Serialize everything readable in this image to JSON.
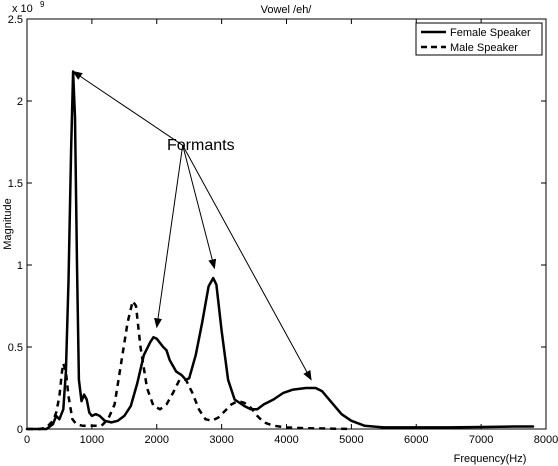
{
  "chart_data": {
    "type": "line",
    "title": "Vowel /eh/",
    "xlabel": "Frequency(Hz)",
    "ylabel": "Magnitude",
    "y_multiplier_label": "x 10",
    "y_multiplier_exponent": "9",
    "xlim": [
      0,
      8000
    ],
    "ylim": [
      0,
      2.5
    ],
    "xticks": [
      0,
      1000,
      2000,
      3000,
      4000,
      5000,
      6000,
      7000,
      8000
    ],
    "yticks": [
      0,
      0.5,
      1,
      1.5,
      2,
      2.5
    ],
    "xtick_labels": [
      "0",
      "1000",
      "2000",
      "3000",
      "4000",
      "5000",
      "6000",
      "7000",
      "8000"
    ],
    "ytick_labels": [
      "0",
      "0.5",
      "1",
      "1.5",
      "2",
      "2.5"
    ],
    "grid": false,
    "legend_position": "top-right",
    "series": [
      {
        "name": "Female Speaker",
        "style": "solid",
        "points": [
          [
            0,
            0
          ],
          [
            300,
            0
          ],
          [
            400,
            0.03
          ],
          [
            450,
            0.08
          ],
          [
            500,
            0.06
          ],
          [
            560,
            0.12
          ],
          [
            600,
            0.35
          ],
          [
            640,
            0.9
          ],
          [
            680,
            1.7
          ],
          [
            710,
            2.18
          ],
          [
            740,
            1.9
          ],
          [
            770,
            1.0
          ],
          [
            800,
            0.3
          ],
          [
            840,
            0.17
          ],
          [
            880,
            0.21
          ],
          [
            920,
            0.18
          ],
          [
            960,
            0.1
          ],
          [
            1000,
            0.08
          ],
          [
            1060,
            0.09
          ],
          [
            1120,
            0.08
          ],
          [
            1200,
            0.05
          ],
          [
            1300,
            0.04
          ],
          [
            1400,
            0.05
          ],
          [
            1500,
            0.08
          ],
          [
            1600,
            0.14
          ],
          [
            1700,
            0.28
          ],
          [
            1800,
            0.45
          ],
          [
            1900,
            0.53
          ],
          [
            1950,
            0.56
          ],
          [
            2000,
            0.55
          ],
          [
            2100,
            0.5
          ],
          [
            2150,
            0.48
          ],
          [
            2200,
            0.42
          ],
          [
            2300,
            0.35
          ],
          [
            2380,
            0.33
          ],
          [
            2450,
            0.3
          ],
          [
            2500,
            0.31
          ],
          [
            2600,
            0.45
          ],
          [
            2700,
            0.65
          ],
          [
            2800,
            0.87
          ],
          [
            2870,
            0.92
          ],
          [
            2920,
            0.88
          ],
          [
            3000,
            0.6
          ],
          [
            3100,
            0.3
          ],
          [
            3200,
            0.18
          ],
          [
            3350,
            0.14
          ],
          [
            3450,
            0.12
          ],
          [
            3550,
            0.12
          ],
          [
            3650,
            0.15
          ],
          [
            3800,
            0.18
          ],
          [
            3950,
            0.22
          ],
          [
            4100,
            0.24
          ],
          [
            4300,
            0.25
          ],
          [
            4450,
            0.25
          ],
          [
            4550,
            0.23
          ],
          [
            4700,
            0.16
          ],
          [
            4850,
            0.09
          ],
          [
            5000,
            0.05
          ],
          [
            5200,
            0.02
          ],
          [
            5500,
            0.01
          ],
          [
            6000,
            0.01
          ],
          [
            6500,
            0.01
          ],
          [
            7000,
            0.012
          ],
          [
            7500,
            0.015
          ],
          [
            7800,
            0.015
          ]
        ]
      },
      {
        "name": "Male Speaker",
        "style": "dashed",
        "points": [
          [
            0,
            0
          ],
          [
            200,
            0
          ],
          [
            300,
            0.01
          ],
          [
            400,
            0.05
          ],
          [
            450,
            0.1
          ],
          [
            500,
            0.2
          ],
          [
            540,
            0.35
          ],
          [
            560,
            0.4
          ],
          [
            600,
            0.35
          ],
          [
            640,
            0.2
          ],
          [
            700,
            0.06
          ],
          [
            760,
            0.03
          ],
          [
            850,
            0.02
          ],
          [
            950,
            0.02
          ],
          [
            1050,
            0.02
          ],
          [
            1150,
            0.02
          ],
          [
            1250,
            0.06
          ],
          [
            1350,
            0.15
          ],
          [
            1450,
            0.4
          ],
          [
            1550,
            0.65
          ],
          [
            1630,
            0.78
          ],
          [
            1680,
            0.75
          ],
          [
            1750,
            0.5
          ],
          [
            1850,
            0.25
          ],
          [
            1950,
            0.14
          ],
          [
            2050,
            0.12
          ],
          [
            2150,
            0.15
          ],
          [
            2250,
            0.22
          ],
          [
            2350,
            0.3
          ],
          [
            2450,
            0.3
          ],
          [
            2550,
            0.22
          ],
          [
            2650,
            0.12
          ],
          [
            2750,
            0.06
          ],
          [
            2850,
            0.05
          ],
          [
            2950,
            0.07
          ],
          [
            3050,
            0.11
          ],
          [
            3150,
            0.15
          ],
          [
            3250,
            0.17
          ],
          [
            3350,
            0.16
          ],
          [
            3450,
            0.13
          ],
          [
            3550,
            0.08
          ],
          [
            3650,
            0.04
          ],
          [
            3800,
            0.02
          ],
          [
            4000,
            0.01
          ],
          [
            4300,
            0.005
          ],
          [
            4600,
            0.003
          ],
          [
            5000,
            0
          ]
        ]
      }
    ],
    "annotations": [
      {
        "text": "Formants",
        "anchor": [
          2400,
          1.73
        ],
        "arrows_to": [
          [
            710,
            2.18
          ],
          [
            2000,
            0.62
          ],
          [
            2890,
            0.98
          ],
          [
            4380,
            0.3
          ]
        ]
      }
    ]
  }
}
